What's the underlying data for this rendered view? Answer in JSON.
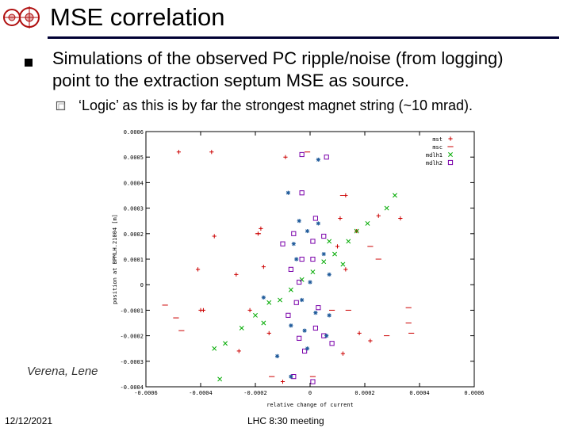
{
  "slide": {
    "title": "MSE correlation",
    "bullet1": "Simulations of the observed PC ripple/noise (from logging) point to the extraction septum MSE as source.",
    "bullet2": "‘Logic’ as this is by far the strongest magnet string (~10 mrad).",
    "author": "Verena, Lene",
    "date": "12/12/2021",
    "meeting": "LHC 8:30 meeting",
    "logo_icon": "cern-logo-icon",
    "bullet_icon": "square-bullet-icon",
    "sub_bullet_icon": "hollow-square-bullet-icon",
    "accent_color": "#000033"
  },
  "chart_data": {
    "type": "scatter",
    "title": "",
    "xlabel": "relative change of current",
    "ylabel": "position at BPMLH.21004 [m]",
    "xlim": [
      -0.0006,
      0.0006
    ],
    "ylim": [
      -0.0004,
      0.0006
    ],
    "x_ticks": [
      "-0.0006",
      "-0.0004",
      "-0.0002",
      "0",
      "0.0002",
      "0.0004",
      "0.0006"
    ],
    "y_ticks": [
      "0.0006",
      "0.0005",
      "0.0004",
      "0.0003",
      "0.0002",
      "0.0001",
      "0",
      "-0.0001",
      "-0.0002",
      "-0.0003",
      "-0.0004"
    ],
    "legend_position": "top-right",
    "series": [
      {
        "name": "mst",
        "marker": "+",
        "color": "#cc0000",
        "points": [
          [
            -0.00048,
            0.00052
          ],
          [
            -0.00036,
            0.00052
          ],
          [
            -0.00018,
            0.00022
          ],
          [
            -0.00019,
            0.0002
          ],
          [
            -0.00035,
            0.00019
          ],
          [
            -0.00041,
            6e-05
          ],
          [
            -0.00027,
            4e-05
          ],
          [
            -0.00017,
            7e-05
          ],
          [
            -0.0004,
            -0.0001
          ],
          [
            -0.00039,
            -0.0001
          ],
          [
            -0.00022,
            -0.0001
          ],
          [
            -0.00015,
            -0.00019
          ],
          [
            -0.00026,
            -0.00026
          ],
          [
            0.00033,
            0.00026
          ],
          [
            0.00025,
            0.00027
          ],
          [
            0.00017,
            0.00021
          ],
          [
            0.00013,
            0.00035
          ],
          [
            0.00011,
            0.00026
          ],
          [
            0.0001,
            0.00015
          ],
          [
            0.00013,
            6e-05
          ],
          [
            0.00018,
            -0.00019
          ],
          [
            0.00022,
            -0.00022
          ],
          [
            0.00012,
            -0.00027
          ],
          [
            -9e-05,
            0.0005
          ],
          [
            -0.0001,
            -0.00038
          ]
        ]
      },
      {
        "name": "msc",
        "marker": "-",
        "color": "#cc0000",
        "points": [
          [
            -0.00053,
            -8e-05
          ],
          [
            -0.00049,
            -0.00013
          ],
          [
            -0.00047,
            -0.00018
          ],
          [
            -0.00019,
            0.0002
          ],
          [
            -1e-05,
            0.00052
          ],
          [
            0.00012,
            0.00035
          ],
          [
            0.00022,
            0.00015
          ],
          [
            0.00025,
            0.0001
          ],
          [
            0.00036,
            -9e-05
          ],
          [
            0.00036,
            -0.00015
          ],
          [
            0.00037,
            -0.00019
          ],
          [
            0.00028,
            -0.0002
          ],
          [
            -0.00014,
            -0.00036
          ],
          [
            1e-05,
            -0.00036
          ],
          [
            8e-05,
            -0.0001
          ],
          [
            0.00014,
            -0.0001
          ]
        ]
      },
      {
        "name": "mdlh1",
        "marker": "x",
        "color": "#00aa00",
        "points": [
          [
            -0.00035,
            -0.00025
          ],
          [
            -0.00031,
            -0.00023
          ],
          [
            -0.00025,
            -0.00017
          ],
          [
            -0.0002,
            -0.00012
          ],
          [
            -0.00015,
            -7e-05
          ],
          [
            -0.00011,
            -6e-05
          ],
          [
            -7e-05,
            -2e-05
          ],
          [
            -3e-05,
            2e-05
          ],
          [
            1e-05,
            5e-05
          ],
          [
            5e-05,
            9e-05
          ],
          [
            9e-05,
            0.00012
          ],
          [
            0.00014,
            0.00017
          ],
          [
            0.00017,
            0.00021
          ],
          [
            0.00021,
            0.00024
          ],
          [
            0.00028,
            0.0003
          ],
          [
            0.00031,
            0.00035
          ],
          [
            -0.00033,
            -0.00037
          ],
          [
            7e-05,
            0.00017
          ],
          [
            0.00012,
            8e-05
          ],
          [
            -0.00017,
            -0.00015
          ]
        ]
      },
      {
        "name": "mdlh2",
        "marker": "sq",
        "color": "#7a00aa",
        "points": [
          [
            -3e-05,
            0.00051
          ],
          [
            6e-05,
            0.0005
          ],
          [
            -3e-05,
            0.00036
          ],
          [
            2e-05,
            0.00026
          ],
          [
            -6e-05,
            0.0002
          ],
          [
            1e-05,
            0.00017
          ],
          [
            -0.0001,
            0.00016
          ],
          [
            -3e-05,
            0.0001
          ],
          [
            -7e-05,
            6e-05
          ],
          [
            1e-05,
            0.0001
          ],
          [
            -4e-05,
            1e-05
          ],
          [
            -5e-05,
            -7e-05
          ],
          [
            3e-05,
            -9e-05
          ],
          [
            -8e-05,
            -0.00012
          ],
          [
            2e-05,
            -0.00017
          ],
          [
            -4e-05,
            -0.00021
          ],
          [
            5e-05,
            -0.0002
          ],
          [
            -2e-05,
            -0.00026
          ],
          [
            -6e-05,
            -0.00036
          ],
          [
            1e-05,
            -0.00038
          ],
          [
            8e-05,
            -0.00023
          ],
          [
            5e-05,
            0.00019
          ]
        ]
      },
      {
        "name": "",
        "marker": "*",
        "color": "#1f5a9a",
        "points": [
          [
            -8e-05,
            0.00036
          ],
          [
            3e-05,
            0.00049
          ],
          [
            -4e-05,
            0.00025
          ],
          [
            -6e-05,
            0.00016
          ],
          [
            3e-05,
            0.00024
          ],
          [
            -5e-05,
            0.0001
          ],
          [
            0.0,
            1e-05
          ],
          [
            -3e-05,
            -6e-05
          ],
          [
            -7e-05,
            -0.00016
          ],
          [
            2e-05,
            -0.00011
          ],
          [
            6e-05,
            -0.0002
          ],
          [
            -1e-05,
            -0.00025
          ],
          [
            -0.00012,
            -0.00028
          ],
          [
            7e-05,
            -0.00012
          ],
          [
            -0.00017,
            -5e-05
          ],
          [
            7e-05,
            4e-05
          ],
          [
            -7e-05,
            -0.00036
          ],
          [
            -1e-05,
            0.00021
          ],
          [
            5e-05,
            0.00012
          ],
          [
            -2e-05,
            -0.00018
          ]
        ]
      }
    ]
  }
}
